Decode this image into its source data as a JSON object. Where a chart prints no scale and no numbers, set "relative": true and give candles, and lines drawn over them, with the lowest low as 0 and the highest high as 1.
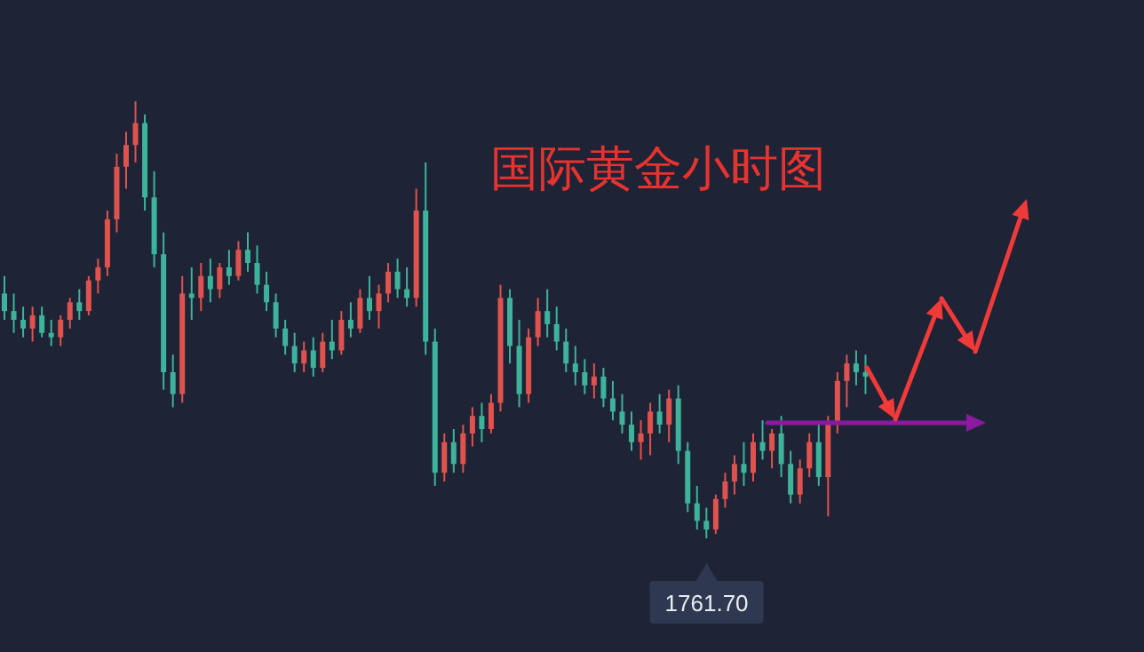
{
  "chart_data": {
    "type": "candlestick",
    "title": "国际黄金小时图",
    "relative": true,
    "tick_labels": false,
    "categories": [
      null,
      null,
      null,
      null,
      null,
      null,
      null,
      null,
      null,
      null,
      null,
      null,
      null,
      null,
      null,
      null,
      null,
      null,
      null,
      null,
      null,
      null,
      null,
      null,
      null,
      null,
      null,
      null,
      null,
      null,
      null,
      null,
      null,
      null,
      null,
      null,
      null,
      null,
      null,
      null,
      null,
      null,
      null,
      null,
      null,
      null,
      null,
      null,
      null,
      null,
      null,
      null,
      null,
      null,
      null,
      null,
      null,
      null,
      null,
      null,
      null,
      null,
      null,
      null,
      null,
      null,
      null,
      null,
      null,
      null,
      null,
      null,
      null,
      null,
      null,
      null,
      null,
      null,
      null,
      null,
      null,
      null,
      null,
      null,
      null,
      null,
      null,
      null,
      null,
      null,
      null,
      null,
      null
    ],
    "ohlc": [
      [
        0.56,
        0.6,
        0.5,
        0.52
      ],
      [
        0.52,
        0.56,
        0.47,
        0.5
      ],
      [
        0.5,
        0.53,
        0.46,
        0.48
      ],
      [
        0.48,
        0.53,
        0.45,
        0.51
      ],
      [
        0.51,
        0.53,
        0.46,
        0.47
      ],
      [
        0.47,
        0.5,
        0.44,
        0.46
      ],
      [
        0.46,
        0.51,
        0.44,
        0.5
      ],
      [
        0.5,
        0.55,
        0.48,
        0.54
      ],
      [
        0.54,
        0.57,
        0.5,
        0.52
      ],
      [
        0.52,
        0.6,
        0.51,
        0.59
      ],
      [
        0.59,
        0.64,
        0.56,
        0.62
      ],
      [
        0.62,
        0.75,
        0.6,
        0.73
      ],
      [
        0.73,
        0.88,
        0.7,
        0.85
      ],
      [
        0.85,
        0.93,
        0.8,
        0.9
      ],
      [
        0.9,
        1.0,
        0.86,
        0.95
      ],
      [
        0.95,
        0.97,
        0.75,
        0.78
      ],
      [
        0.78,
        0.84,
        0.62,
        0.65
      ],
      [
        0.65,
        0.7,
        0.34,
        0.38
      ],
      [
        0.38,
        0.42,
        0.3,
        0.33
      ],
      [
        0.33,
        0.6,
        0.31,
        0.56
      ],
      [
        0.56,
        0.62,
        0.5,
        0.55
      ],
      [
        0.55,
        0.63,
        0.52,
        0.6
      ],
      [
        0.6,
        0.64,
        0.54,
        0.57
      ],
      [
        0.57,
        0.63,
        0.55,
        0.62
      ],
      [
        0.62,
        0.66,
        0.58,
        0.6
      ],
      [
        0.6,
        0.68,
        0.59,
        0.66
      ],
      [
        0.66,
        0.7,
        0.61,
        0.63
      ],
      [
        0.63,
        0.67,
        0.56,
        0.58
      ],
      [
        0.58,
        0.61,
        0.52,
        0.54
      ],
      [
        0.54,
        0.56,
        0.46,
        0.48
      ],
      [
        0.48,
        0.5,
        0.42,
        0.44
      ],
      [
        0.44,
        0.47,
        0.38,
        0.4
      ],
      [
        0.4,
        0.45,
        0.38,
        0.43
      ],
      [
        0.43,
        0.46,
        0.37,
        0.39
      ],
      [
        0.39,
        0.47,
        0.38,
        0.45
      ],
      [
        0.45,
        0.5,
        0.41,
        0.43
      ],
      [
        0.43,
        0.52,
        0.42,
        0.5
      ],
      [
        0.5,
        0.54,
        0.46,
        0.48
      ],
      [
        0.48,
        0.57,
        0.47,
        0.55
      ],
      [
        0.55,
        0.6,
        0.5,
        0.52
      ],
      [
        0.52,
        0.58,
        0.48,
        0.56
      ],
      [
        0.56,
        0.63,
        0.54,
        0.61
      ],
      [
        0.61,
        0.64,
        0.55,
        0.57
      ],
      [
        0.57,
        0.62,
        0.53,
        0.55
      ],
      [
        0.55,
        0.8,
        0.53,
        0.75
      ],
      [
        0.75,
        0.86,
        0.42,
        0.45
      ],
      [
        0.45,
        0.48,
        0.12,
        0.15
      ],
      [
        0.15,
        0.24,
        0.13,
        0.22
      ],
      [
        0.22,
        0.25,
        0.15,
        0.17
      ],
      [
        0.17,
        0.26,
        0.15,
        0.24
      ],
      [
        0.24,
        0.3,
        0.21,
        0.28
      ],
      [
        0.28,
        0.31,
        0.22,
        0.25
      ],
      [
        0.25,
        0.33,
        0.24,
        0.31
      ],
      [
        0.31,
        0.58,
        0.29,
        0.55
      ],
      [
        0.55,
        0.57,
        0.4,
        0.44
      ],
      [
        0.44,
        0.5,
        0.3,
        0.33
      ],
      [
        0.33,
        0.48,
        0.31,
        0.46
      ],
      [
        0.46,
        0.55,
        0.44,
        0.52
      ],
      [
        0.52,
        0.57,
        0.46,
        0.49
      ],
      [
        0.49,
        0.53,
        0.43,
        0.45
      ],
      [
        0.45,
        0.48,
        0.38,
        0.4
      ],
      [
        0.4,
        0.44,
        0.35,
        0.38
      ],
      [
        0.38,
        0.41,
        0.33,
        0.35
      ],
      [
        0.35,
        0.4,
        0.32,
        0.37
      ],
      [
        0.37,
        0.39,
        0.3,
        0.32
      ],
      [
        0.32,
        0.36,
        0.27,
        0.29
      ],
      [
        0.29,
        0.33,
        0.24,
        0.26
      ],
      [
        0.26,
        0.29,
        0.2,
        0.22
      ],
      [
        0.22,
        0.27,
        0.18,
        0.24
      ],
      [
        0.24,
        0.31,
        0.19,
        0.29
      ],
      [
        0.29,
        0.33,
        0.24,
        0.26
      ],
      [
        0.26,
        0.34,
        0.22,
        0.32
      ],
      [
        0.32,
        0.35,
        0.17,
        0.2
      ],
      [
        0.2,
        0.22,
        0.06,
        0.08
      ],
      [
        0.08,
        0.12,
        0.02,
        0.04
      ],
      [
        0.04,
        0.07,
        0.0,
        0.02
      ],
      [
        0.02,
        0.1,
        0.01,
        0.09
      ],
      [
        0.09,
        0.15,
        0.07,
        0.13
      ],
      [
        0.13,
        0.19,
        0.1,
        0.17
      ],
      [
        0.17,
        0.22,
        0.12,
        0.15
      ],
      [
        0.15,
        0.24,
        0.13,
        0.22
      ],
      [
        0.22,
        0.27,
        0.18,
        0.2
      ],
      [
        0.2,
        0.25,
        0.16,
        0.24
      ],
      [
        0.24,
        0.28,
        0.14,
        0.17
      ],
      [
        0.17,
        0.2,
        0.08,
        0.1
      ],
      [
        0.1,
        0.18,
        0.08,
        0.16
      ],
      [
        0.16,
        0.24,
        0.14,
        0.22
      ],
      [
        0.22,
        0.26,
        0.12,
        0.14
      ],
      [
        0.14,
        0.28,
        0.05,
        0.26
      ],
      [
        0.26,
        0.38,
        0.24,
        0.36
      ],
      [
        0.36,
        0.42,
        0.3,
        0.4
      ],
      [
        0.4,
        0.43,
        0.35,
        0.38
      ],
      [
        0.38,
        0.42,
        0.33,
        0.37
      ]
    ],
    "colors": [
      "#3db39b",
      "#3db39b",
      "#3db39b",
      "#e0524e",
      "#3db39b",
      "#3db39b",
      "#e0524e",
      "#e0524e",
      "#3db39b",
      "#e0524e",
      "#e0524e",
      "#e0524e",
      "#e0524e",
      "#e0524e",
      "#e0524e",
      "#3db39b",
      "#3db39b",
      "#3db39b",
      "#3db39b",
      "#e0524e",
      "#3db39b",
      "#e0524e",
      "#3db39b",
      "#e0524e",
      "#3db39b",
      "#e0524e",
      "#3db39b",
      "#3db39b",
      "#3db39b",
      "#3db39b",
      "#3db39b",
      "#3db39b",
      "#e0524e",
      "#3db39b",
      "#e0524e",
      "#3db39b",
      "#e0524e",
      "#3db39b",
      "#e0524e",
      "#3db39b",
      "#e0524e",
      "#e0524e",
      "#3db39b",
      "#3db39b",
      "#e0524e",
      "#3db39b",
      "#3db39b",
      "#e0524e",
      "#3db39b",
      "#e0524e",
      "#e0524e",
      "#3db39b",
      "#e0524e",
      "#e0524e",
      "#3db39b",
      "#3db39b",
      "#e0524e",
      "#e0524e",
      "#3db39b",
      "#3db39b",
      "#3db39b",
      "#3db39b",
      "#3db39b",
      "#e0524e",
      "#3db39b",
      "#3db39b",
      "#3db39b",
      "#3db39b",
      "#e0524e",
      "#e0524e",
      "#3db39b",
      "#e0524e",
      "#3db39b",
      "#3db39b",
      "#3db39b",
      "#3db39b",
      "#e0524e",
      "#e0524e",
      "#e0524e",
      "#3db39b",
      "#e0524e",
      "#3db39b",
      "#e0524e",
      "#3db39b",
      "#3db39b",
      "#e0524e",
      "#e0524e",
      "#3db39b",
      "#e0524e",
      "#e0524e",
      "#e0524e",
      "#3db39b",
      "#3db39b"
    ],
    "annotations": [
      {
        "text": "1761.70",
        "y": 0
      }
    ]
  }
}
